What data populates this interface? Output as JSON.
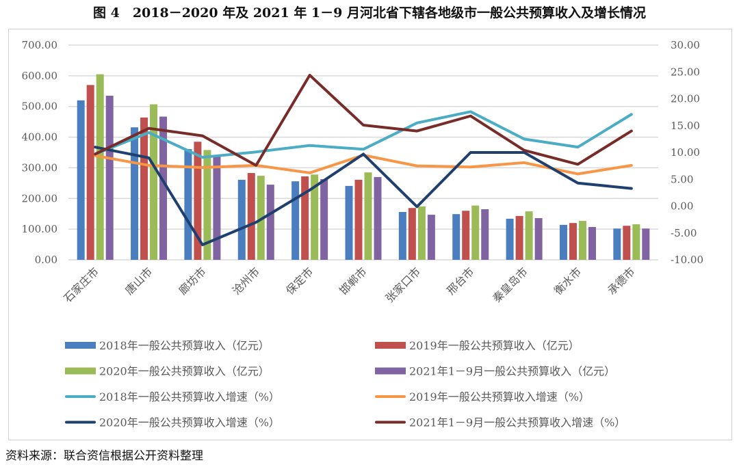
{
  "title": "图 4　2018－2020 年及 2021 年 1－9 月河北省下辖各地级市一般公共预算收入及增长情况",
  "source": "资料来源：联合资信根据公开资料整理",
  "chart_data": {
    "type": "bar+line",
    "categories": [
      "石家庄市",
      "唐山市",
      "廊坊市",
      "沧州市",
      "保定市",
      "邯郸市",
      "张家口市",
      "邢台市",
      "秦皇岛市",
      "衡水市",
      "承德市"
    ],
    "y_left": {
      "range": [
        0,
        700
      ],
      "ticks": [
        "0.00",
        "100.00",
        "200.00",
        "300.00",
        "400.00",
        "500.00",
        "600.00",
        "700.00"
      ]
    },
    "y_right": {
      "range": [
        -10,
        30
      ],
      "ticks": [
        "-10.00",
        "-5.00",
        "0.00",
        "5.00",
        "10.00",
        "15.00",
        "20.00",
        "25.00",
        "30.00"
      ]
    },
    "grid": true,
    "legend_position": "bottom",
    "bar_series": [
      {
        "name": "2018年一般公共预算收入（亿元）",
        "color": "#4a7ebf",
        "values": [
          520,
          432,
          361,
          261,
          256,
          241,
          156,
          149,
          134,
          114,
          102
        ]
      },
      {
        "name": "2019年一般公共预算收入（亿元）",
        "color": "#c0504d",
        "values": [
          570,
          464,
          385,
          283,
          272,
          261,
          169,
          160,
          143,
          120,
          111
        ]
      },
      {
        "name": "2020年一般公共预算收入（亿元）",
        "color": "#9bbb59",
        "values": [
          605,
          507,
          358,
          274,
          278,
          285,
          174,
          177,
          158,
          127,
          116
        ]
      },
      {
        "name": "2021年1－9月一般公共预算收入（亿元）",
        "color": "#8064a2",
        "values": [
          535,
          467,
          338,
          245,
          263,
          270,
          147,
          165,
          136,
          107,
          102
        ]
      }
    ],
    "line_series": [
      {
        "name": "2018年一般公共预算收入增速（%）",
        "color": "#4bacc6",
        "values": [
          9.7,
          13.7,
          9.1,
          10.1,
          11.3,
          10.6,
          15.5,
          17.6,
          12.5,
          11.0,
          17.1
        ]
      },
      {
        "name": "2019年一般公共预算收入增速（%）",
        "color": "#f79646",
        "values": [
          9.4,
          7.6,
          7.2,
          7.6,
          6.2,
          9.5,
          7.5,
          7.3,
          8.1,
          6.0,
          7.6
        ]
      },
      {
        "name": "2020年一般公共预算收入增速（%）",
        "color": "#1f3f6e",
        "values": [
          11.0,
          9.0,
          -7.2,
          -3.0,
          3.0,
          9.7,
          -0.1,
          10.0,
          10.0,
          4.3,
          3.3
        ]
      },
      {
        "name": "2021年1－9月一般公共预算收入增速（%）",
        "color": "#772c2a",
        "values": [
          9.7,
          14.5,
          13.1,
          7.6,
          24.4,
          15.1,
          14.0,
          16.8,
          10.4,
          7.8,
          14.0
        ]
      }
    ]
  }
}
